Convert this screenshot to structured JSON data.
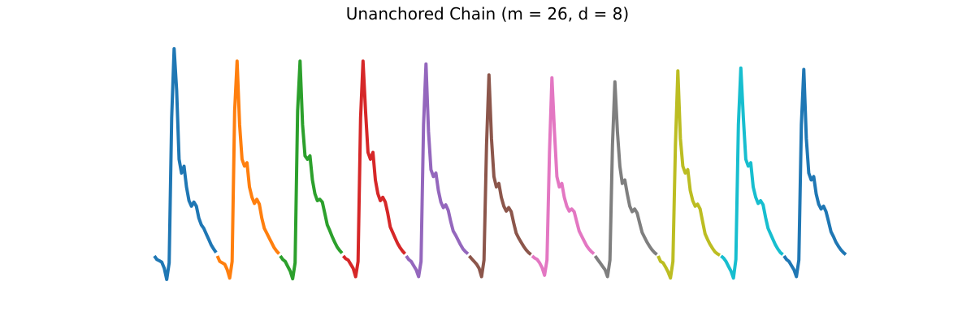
{
  "chart_data": {
    "type": "line",
    "title": "Unanchored Chain (m = 26, d = 8)",
    "xlabel": "",
    "ylabel": "",
    "axes_visible": false,
    "grid": false,
    "legend": "none",
    "xlim": [
      0,
      26
    ],
    "ylim": [
      -0.25,
      3.25
    ],
    "series": [
      {
        "color": "#1f77b4",
        "values": [
          0.0,
          -0.05,
          -0.07,
          -0.09,
          -0.18,
          -0.34,
          -0.1,
          2.0,
          3.0,
          2.4,
          1.4,
          1.2,
          1.3,
          1.0,
          0.8,
          0.72,
          0.78,
          0.72,
          0.55,
          0.45,
          0.4,
          0.32,
          0.24,
          0.16,
          0.1,
          0.05
        ]
      },
      {
        "color": "#ff7f0e",
        "values": [
          0.0,
          -0.08,
          -0.1,
          -0.12,
          -0.2,
          -0.32,
          -0.08,
          2.1,
          2.82,
          1.9,
          1.4,
          1.3,
          1.35,
          1.0,
          0.85,
          0.76,
          0.82,
          0.75,
          0.55,
          0.4,
          0.33,
          0.26,
          0.19,
          0.12,
          0.07,
          0.03
        ]
      },
      {
        "color": "#2ca02c",
        "values": [
          0.0,
          -0.05,
          -0.08,
          -0.15,
          -0.22,
          -0.33,
          -0.1,
          2.1,
          2.82,
          1.9,
          1.45,
          1.4,
          1.45,
          1.1,
          0.9,
          0.8,
          0.82,
          0.78,
          0.62,
          0.45,
          0.37,
          0.28,
          0.2,
          0.13,
          0.08,
          0.04
        ]
      },
      {
        "color": "#d62728",
        "values": [
          0.0,
          -0.04,
          -0.06,
          -0.12,
          -0.18,
          -0.3,
          -0.08,
          2.0,
          2.82,
          2.1,
          1.5,
          1.4,
          1.5,
          1.1,
          0.9,
          0.8,
          0.85,
          0.78,
          0.62,
          0.42,
          0.34,
          0.26,
          0.18,
          0.12,
          0.07,
          0.03
        ]
      },
      {
        "color": "#9467bd",
        "values": [
          0.0,
          -0.05,
          -0.08,
          -0.14,
          -0.2,
          -0.3,
          -0.08,
          1.9,
          2.78,
          1.8,
          1.25,
          1.15,
          1.2,
          0.95,
          0.78,
          0.7,
          0.74,
          0.66,
          0.5,
          0.36,
          0.3,
          0.23,
          0.16,
          0.1,
          0.06,
          0.03
        ]
      },
      {
        "color": "#8c564b",
        "values": [
          0.0,
          -0.04,
          -0.08,
          -0.12,
          -0.18,
          -0.3,
          -0.06,
          1.6,
          2.62,
          1.7,
          1.15,
          1.0,
          1.05,
          0.85,
          0.72,
          0.65,
          0.7,
          0.64,
          0.48,
          0.33,
          0.26,
          0.2,
          0.14,
          0.09,
          0.05,
          0.02
        ]
      },
      {
        "color": "#e377c2",
        "values": [
          0.0,
          -0.03,
          -0.05,
          -0.1,
          -0.17,
          -0.28,
          -0.06,
          1.5,
          2.58,
          1.8,
          1.15,
          1.0,
          1.05,
          0.85,
          0.72,
          0.65,
          0.68,
          0.64,
          0.5,
          0.36,
          0.29,
          0.22,
          0.15,
          0.1,
          0.06,
          0.03
        ]
      },
      {
        "color": "#7f7f7f",
        "values": [
          0.0,
          -0.05,
          -0.1,
          -0.15,
          -0.2,
          -0.3,
          -0.06,
          1.6,
          2.52,
          1.8,
          1.3,
          1.05,
          1.1,
          0.9,
          0.72,
          0.64,
          0.68,
          0.62,
          0.48,
          0.34,
          0.27,
          0.2,
          0.14,
          0.09,
          0.05,
          0.02
        ]
      },
      {
        "color": "#bcbd22",
        "values": [
          0.0,
          -0.08,
          -0.1,
          -0.16,
          -0.23,
          -0.32,
          -0.08,
          1.6,
          2.68,
          1.7,
          1.3,
          1.2,
          1.25,
          0.95,
          0.8,
          0.72,
          0.75,
          0.68,
          0.5,
          0.32,
          0.24,
          0.17,
          0.11,
          0.06,
          0.03,
          0.01
        ]
      },
      {
        "color": "#17becf",
        "values": [
          0.0,
          -0.03,
          -0.08,
          -0.15,
          -0.22,
          -0.32,
          -0.05,
          1.9,
          2.72,
          2.0,
          1.4,
          1.3,
          1.35,
          1.0,
          0.85,
          0.76,
          0.8,
          0.74,
          0.56,
          0.4,
          0.32,
          0.24,
          0.16,
          0.1,
          0.05,
          0.02
        ]
      },
      {
        "color": "#1f77b4",
        "values": [
          0.0,
          -0.05,
          -0.08,
          -0.14,
          -0.2,
          -0.3,
          -0.06,
          1.9,
          2.7,
          1.7,
          1.2,
          1.1,
          1.15,
          0.9,
          0.75,
          0.68,
          0.72,
          0.64,
          0.5,
          0.35,
          0.28,
          0.2,
          0.14,
          0.09,
          0.05,
          0.02
        ]
      }
    ]
  }
}
